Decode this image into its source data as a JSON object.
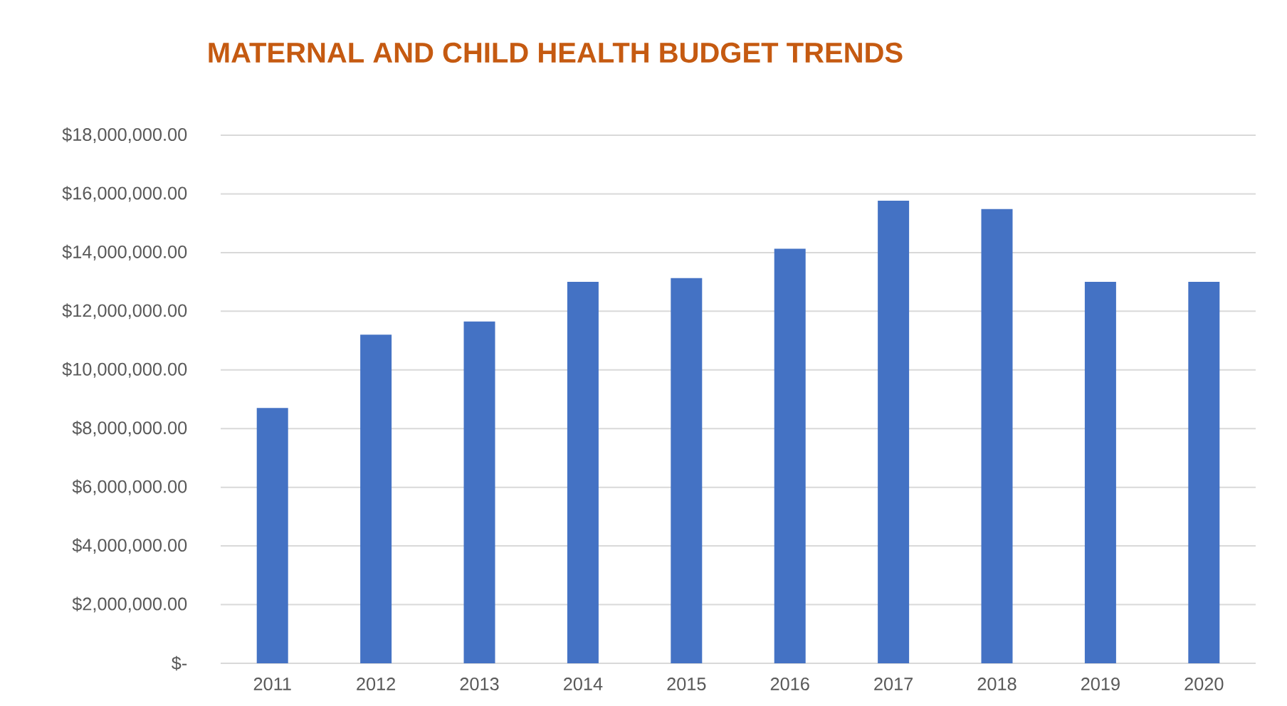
{
  "chart_data": {
    "type": "bar",
    "title": "MATERNAL AND CHILD HEALTH BUDGET TRENDS",
    "categories": [
      "2011",
      "2012",
      "2013",
      "2014",
      "2015",
      "2016",
      "2017",
      "2018",
      "2019",
      "2020"
    ],
    "values": [
      8700000,
      11200000,
      11650000,
      13000000,
      13130000,
      14130000,
      15770000,
      15480000,
      13000000,
      13000000
    ],
    "color": "#4472c4",
    "ylim": [
      0,
      18000000
    ],
    "yticks": [
      {
        "value": 0,
        "label": "$-"
      },
      {
        "value": 2000000,
        "label": "$2,000,000.00"
      },
      {
        "value": 4000000,
        "label": "$4,000,000.00"
      },
      {
        "value": 6000000,
        "label": "$6,000,000.00"
      },
      {
        "value": 8000000,
        "label": "$8,000,000.00"
      },
      {
        "value": 10000000,
        "label": "$10,000,000.00"
      },
      {
        "value": 12000000,
        "label": "$12,000,000.00"
      },
      {
        "value": 14000000,
        "label": "$14,000,000.00"
      },
      {
        "value": 16000000,
        "label": "$16,000,000.00"
      },
      {
        "value": 18000000,
        "label": "$18,000,000.00"
      }
    ],
    "grid": "y"
  }
}
